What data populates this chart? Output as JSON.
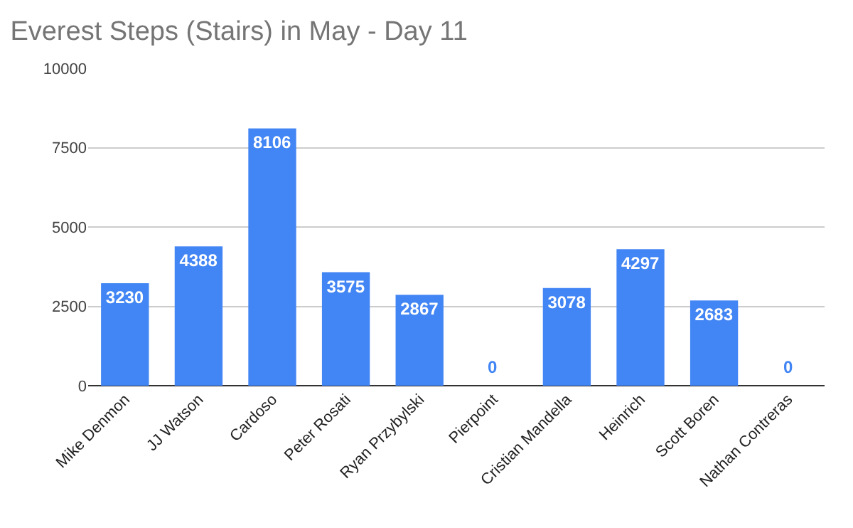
{
  "chart_data": {
    "type": "bar",
    "title": "Everest Steps (Stairs) in May - Day 11",
    "categories": [
      "Mike Denmon",
      "JJ Watson",
      "Cardoso",
      "Peter Rosati",
      "Ryan Przybylski",
      "Pierpoint",
      "Cristian Mandella",
      "Heinrich",
      "Scott Boren",
      "Nathan Contreras"
    ],
    "values": [
      3230,
      4388,
      8106,
      3575,
      2867,
      0,
      3078,
      4297,
      2683,
      0
    ],
    "color": "#4285f4",
    "ylim": [
      0,
      10000
    ],
    "yticks": [
      0,
      2500,
      5000,
      7500,
      10000
    ],
    "grid": "y",
    "data_labels": true
  }
}
